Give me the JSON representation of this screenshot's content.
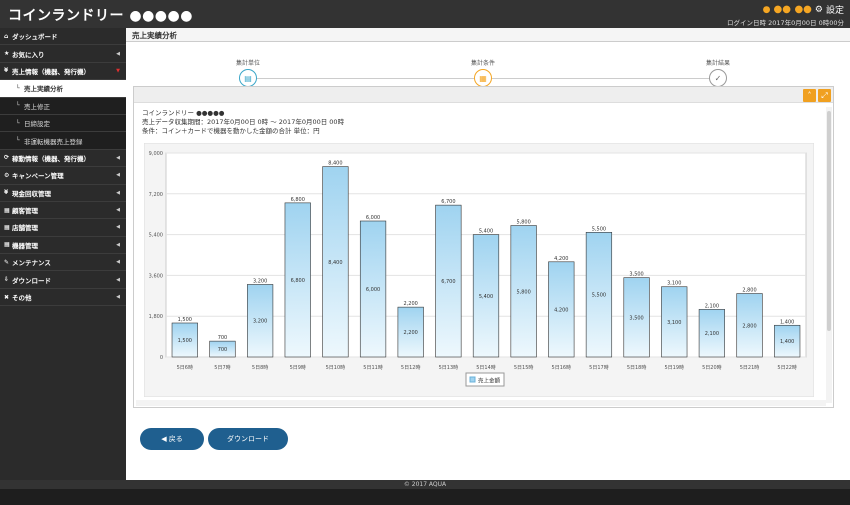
{
  "app": {
    "title": "コインランドリー ●●●●●",
    "user_name": "●● ●●",
    "settings_label": "設定",
    "login_info": "ログイン日時 2017年0月00日 0時00分"
  },
  "sidebar": {
    "items": [
      {
        "icon": "⌂",
        "label": "ダッシュボード"
      },
      {
        "icon": "★",
        "label": "お気に入り"
      },
      {
        "icon": "¥",
        "label": "売上情報（機器、発行機）"
      },
      {
        "icon": "└",
        "label": "売上実績分析"
      },
      {
        "icon": "└",
        "label": "売上修正"
      },
      {
        "icon": "└",
        "label": "日締設定"
      },
      {
        "icon": "└",
        "label": "非運転機器売上登録"
      },
      {
        "icon": "⟳",
        "label": "稼動情報（機器、発行機）"
      },
      {
        "icon": "⚙",
        "label": "キャンペーン管理"
      },
      {
        "icon": "¥",
        "label": "現金回収管理"
      },
      {
        "icon": "▦",
        "label": "顧客管理"
      },
      {
        "icon": "▦",
        "label": "店舗管理"
      },
      {
        "icon": "▦",
        "label": "機器管理"
      },
      {
        "icon": "✎",
        "label": "メンテナンス"
      },
      {
        "icon": "⇩",
        "label": "ダウンロード"
      },
      {
        "icon": "✖",
        "label": "その他"
      }
    ]
  },
  "page": {
    "title": "売上実績分析",
    "steps": [
      "集計単位",
      "集計条件",
      "集計結果"
    ]
  },
  "result": {
    "store": "コインランドリー ●●●●●",
    "period": "売上データ収集期間：2017年0月00日 0時 ～ 2017年0月00日 00時",
    "condition": "条件：コイン＋カードで機器を動かした金額の合計 単位：円"
  },
  "chart_data": {
    "type": "bar",
    "categories": [
      "5日6時",
      "5日7時",
      "5日8時",
      "5日9時",
      "5日10時",
      "5日11時",
      "5日12時",
      "5日13時",
      "5日14時",
      "5日15時",
      "5日16時",
      "5日17時",
      "5日18時",
      "5日19時",
      "5日20時",
      "5日21時",
      "5日22時"
    ],
    "series": [
      {
        "name": "売上金額",
        "values": [
          1500,
          700,
          3200,
          6800,
          8400,
          6000,
          2200,
          6700,
          5400,
          5800,
          4200,
          5500,
          3500,
          3100,
          2100,
          2800,
          1400
        ]
      }
    ],
    "y_ticks": [
      "0",
      "1,800",
      "3,600",
      "5,400",
      "7,200",
      "9,000"
    ],
    "value_labels": [
      "1,500",
      "700",
      "3,200",
      "6,800",
      "8,400",
      "6,000",
      "2,200",
      "6,700",
      "5,400",
      "5,800",
      "4,200",
      "5,500",
      "3,500",
      "3,100",
      "2,100",
      "2,800",
      "1,400"
    ],
    "ylim": [
      0,
      9000
    ],
    "grid": true,
    "legend_position": "bottom"
  },
  "buttons": {
    "back": "◀ 戻る",
    "download": "ダウンロード"
  },
  "footer": {
    "copyright": "© 2017 AQUA"
  }
}
